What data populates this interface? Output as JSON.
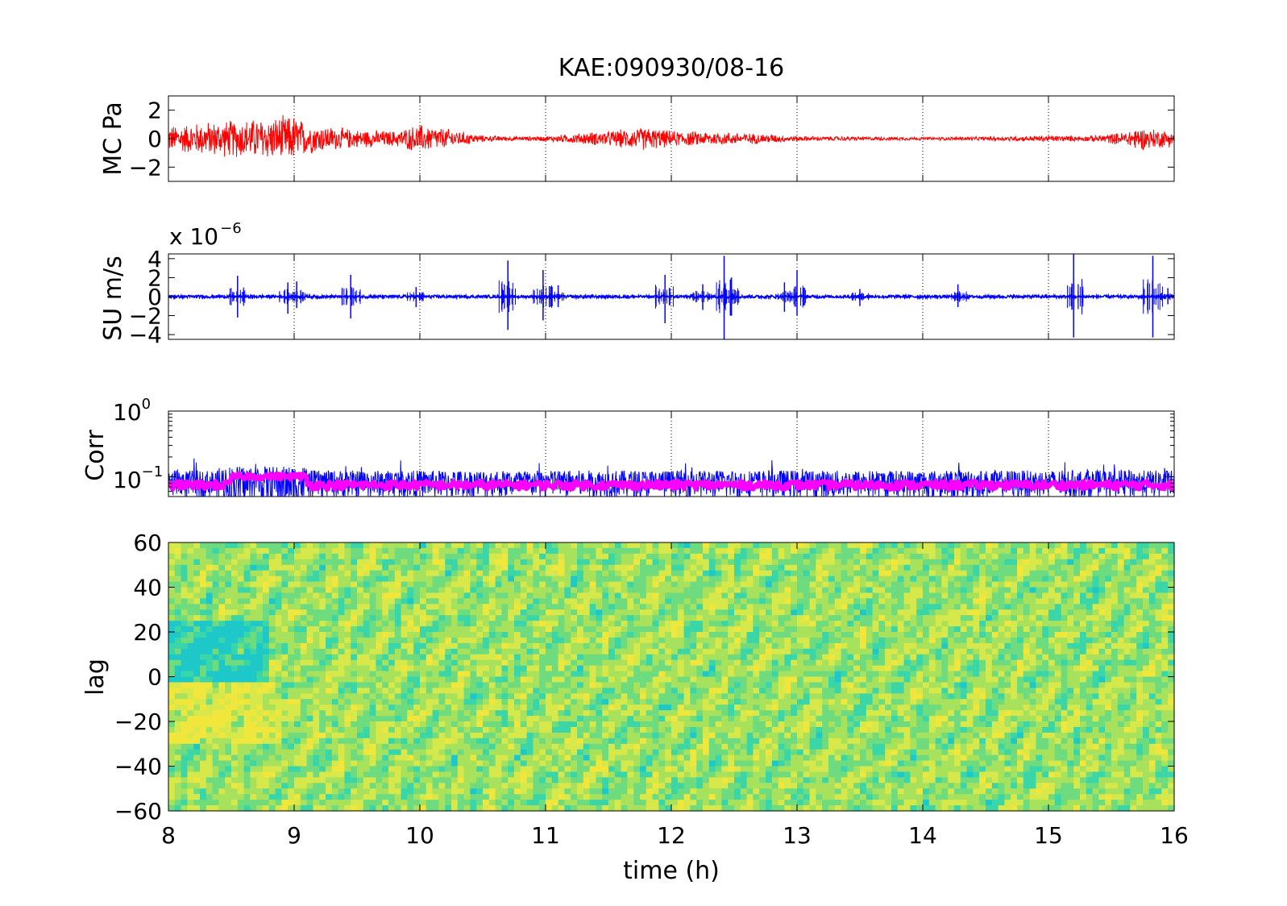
{
  "title": "KAE:090930/08-16",
  "colors": {
    "mc_trace": "#ff0000",
    "su_trace": "#0000ff",
    "corr_raw": "#0000ff",
    "corr_smooth": "#ff00ff",
    "background": "#ffffff"
  },
  "chart_data": [
    {
      "type": "line",
      "ylabel": "MC Pa",
      "xlim": [
        8,
        16
      ],
      "ylim": [
        -3,
        3
      ],
      "yticks": [
        -2,
        0,
        2
      ],
      "ytick_labels": [
        "−2",
        "0",
        "2"
      ],
      "grid": "x-dotted",
      "series": [
        {
          "amplitude_envelope": {
            "x": [
              8,
              8.3,
              8.6,
              8.9,
              9.0,
              9.1,
              9.3,
              9.5,
              9.8,
              10.0,
              10.2,
              10.5,
              10.8,
              11.0,
              11.5,
              11.8,
              12.0,
              12.4,
              12.8,
              13.0,
              13.5,
              14.0,
              14.5,
              15.0,
              15.3,
              15.6,
              15.7,
              15.9,
              16
            ],
            "y": [
              1.0,
              1.3,
              1.5,
              1.7,
              1.8,
              1.2,
              0.9,
              0.7,
              0.6,
              1.1,
              0.8,
              0.25,
              0.15,
              0.2,
              0.6,
              0.9,
              0.6,
              0.5,
              0.35,
              0.2,
              0.15,
              0.12,
              0.15,
              0.25,
              0.2,
              0.5,
              0.9,
              0.7,
              0.6
            ]
          }
        }
      ]
    },
    {
      "type": "line",
      "ylabel": "SU m/s",
      "exponent_label": "x 10",
      "exponent_power": "−6",
      "xlim": [
        8,
        16
      ],
      "ylim": [
        -4.5,
        4.5
      ],
      "yticks": [
        -4,
        -2,
        0,
        2,
        4
      ],
      "ytick_labels": [
        "−4",
        "−2",
        "0",
        "2",
        "4"
      ],
      "grid": "x-dotted",
      "series": [
        {
          "background_amplitude": 0.15,
          "spikes": [
            {
              "x": 8.55,
              "y": [
                -2.2,
                2.2
              ]
            },
            {
              "x": 8.95,
              "y": [
                -1.8,
                1.5
              ]
            },
            {
              "x": 9.02,
              "y": [
                -1.2,
                1.6
              ]
            },
            {
              "x": 9.45,
              "y": [
                -2.3,
                2.3
              ]
            },
            {
              "x": 9.97,
              "y": [
                -1.1,
                1.0
              ]
            },
            {
              "x": 10.7,
              "y": [
                -3.5,
                3.8
              ]
            },
            {
              "x": 10.98,
              "y": [
                -2.5,
                2.8
              ]
            },
            {
              "x": 11.1,
              "y": [
                -1.1,
                1.2
              ]
            },
            {
              "x": 11.95,
              "y": [
                -2.8,
                2.3
              ]
            },
            {
              "x": 12.25,
              "y": [
                -1.4,
                1.3
              ]
            },
            {
              "x": 12.42,
              "y": [
                -4.5,
                4.3
              ]
            },
            {
              "x": 12.47,
              "y": [
                -2.0,
                1.8
              ]
            },
            {
              "x": 12.9,
              "y": [
                -1.6,
                1.5
              ]
            },
            {
              "x": 13.0,
              "y": [
                -2.0,
                2.8
              ]
            },
            {
              "x": 13.5,
              "y": [
                -1.0,
                0.8
              ]
            },
            {
              "x": 14.28,
              "y": [
                -1.1,
                1.3
              ]
            },
            {
              "x": 15.2,
              "y": [
                -4.3,
                4.5
              ]
            },
            {
              "x": 15.83,
              "y": [
                -4.3,
                4.3
              ]
            },
            {
              "x": 15.95,
              "y": [
                -0.8,
                0.9
              ]
            }
          ]
        }
      ]
    },
    {
      "type": "line",
      "ylabel": "Corr",
      "yscale": "log",
      "xlim": [
        8,
        16
      ],
      "ylim": [
        0.05,
        1
      ],
      "ytick_labels": [
        {
          "base": "10",
          "power": "0",
          "value": 1
        },
        {
          "base": "10",
          "power": "−1",
          "value": 0.1
        }
      ],
      "grid": "x-dotted",
      "series": [
        {
          "level": 0.085,
          "spread": 0.02
        },
        {
          "level": 0.075,
          "spread": 0.01
        }
      ]
    },
    {
      "type": "heatmap",
      "ylabel": "lag",
      "xlabel": "time (h)",
      "xlim": [
        8,
        16
      ],
      "ylim": [
        -60,
        60
      ],
      "xticks": [
        "8",
        "9",
        "10",
        "11",
        "12",
        "13",
        "14",
        "15",
        "16"
      ],
      "yticks": [
        -60,
        -40,
        -20,
        0,
        20,
        40,
        60
      ],
      "ytick_labels": [
        "−60",
        "−40",
        "−20",
        "0",
        "20",
        "40",
        "60"
      ],
      "colormap": [
        "#1ec8c8",
        "#3ad6a8",
        "#6edc7e",
        "#a8e25c",
        "#d6e84a",
        "#f0e63c"
      ]
    }
  ]
}
